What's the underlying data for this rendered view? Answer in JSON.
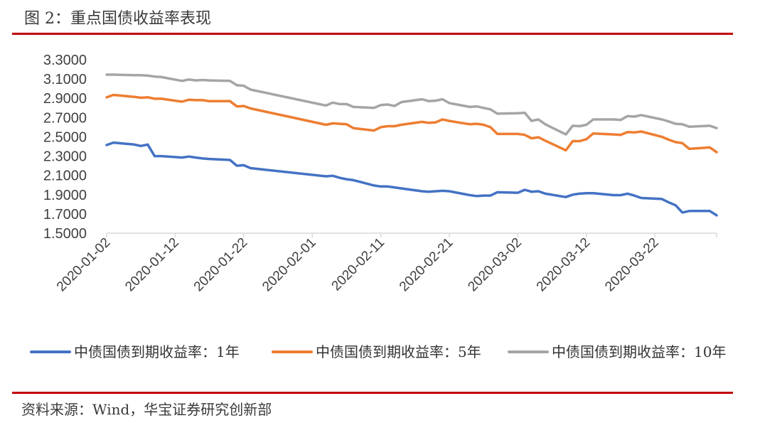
{
  "title": "图 2：重点国债收益率表现",
  "source": "资料来源：Wind，华宝证券研究创新部",
  "colors": {
    "rule": "#c00000",
    "axis": "#d9d9d9"
  },
  "chart_data": {
    "type": "line",
    "title": "",
    "xlabel": "",
    "ylabel": "",
    "ylim": [
      1.5,
      3.3
    ],
    "yticks": [
      "3.3000",
      "3.1000",
      "2.9000",
      "2.7000",
      "2.5000",
      "2.3000",
      "2.1000",
      "1.9000",
      "1.7000",
      "1.5000"
    ],
    "xlim": [
      "2020-01-02",
      "2020-03-31"
    ],
    "xticks": [
      "2020-01-02",
      "2020-01-12",
      "2020-01-22",
      "2020-02-01",
      "2020-02-11",
      "2020-02-21",
      "2020-03-02",
      "2020-03-12",
      "2020-03-22"
    ],
    "grid": false,
    "legend": "bottom",
    "series": [
      {
        "name": "中债国债到期收益率：1年",
        "color": "#4472c4",
        "points": [
          [
            "2020-01-02",
            2.415
          ],
          [
            "2020-01-03",
            2.44
          ],
          [
            "2020-01-06",
            2.42
          ],
          [
            "2020-01-07",
            2.405
          ],
          [
            "2020-01-08",
            2.42
          ],
          [
            "2020-01-09",
            2.3
          ],
          [
            "2020-01-10",
            2.3
          ],
          [
            "2020-01-13",
            2.285
          ],
          [
            "2020-01-14",
            2.295
          ],
          [
            "2020-01-15",
            2.285
          ],
          [
            "2020-01-16",
            2.275
          ],
          [
            "2020-01-17",
            2.27
          ],
          [
            "2020-01-20",
            2.26
          ],
          [
            "2020-01-21",
            2.2
          ],
          [
            "2020-01-22",
            2.205
          ],
          [
            "2020-01-23",
            2.175
          ],
          [
            "2020-02-03",
            2.09
          ],
          [
            "2020-02-04",
            2.095
          ],
          [
            "2020-02-05",
            2.075
          ],
          [
            "2020-02-06",
            2.06
          ],
          [
            "2020-02-07",
            2.05
          ],
          [
            "2020-02-10",
            1.995
          ],
          [
            "2020-02-11",
            1.985
          ],
          [
            "2020-02-12",
            1.985
          ],
          [
            "2020-02-13",
            1.975
          ],
          [
            "2020-02-14",
            1.965
          ],
          [
            "2020-02-17",
            1.935
          ],
          [
            "2020-02-18",
            1.93
          ],
          [
            "2020-02-19",
            1.935
          ],
          [
            "2020-02-20",
            1.94
          ],
          [
            "2020-02-21",
            1.935
          ],
          [
            "2020-02-24",
            1.895
          ],
          [
            "2020-02-25",
            1.885
          ],
          [
            "2020-02-26",
            1.89
          ],
          [
            "2020-02-27",
            1.89
          ],
          [
            "2020-02-28",
            1.925
          ],
          [
            "2020-03-02",
            1.92
          ],
          [
            "2020-03-03",
            1.95
          ],
          [
            "2020-03-04",
            1.93
          ],
          [
            "2020-03-05",
            1.935
          ],
          [
            "2020-03-06",
            1.91
          ],
          [
            "2020-03-09",
            1.875
          ],
          [
            "2020-03-10",
            1.9
          ],
          [
            "2020-03-11",
            1.91
          ],
          [
            "2020-03-12",
            1.915
          ],
          [
            "2020-03-13",
            1.915
          ],
          [
            "2020-03-16",
            1.895
          ],
          [
            "2020-03-17",
            1.895
          ],
          [
            "2020-03-18",
            1.91
          ],
          [
            "2020-03-19",
            1.89
          ],
          [
            "2020-03-20",
            1.865
          ],
          [
            "2020-03-23",
            1.855
          ],
          [
            "2020-03-24",
            1.82
          ],
          [
            "2020-03-25",
            1.79
          ],
          [
            "2020-03-26",
            1.715
          ],
          [
            "2020-03-27",
            1.73
          ],
          [
            "2020-03-30",
            1.73
          ],
          [
            "2020-03-31",
            1.685
          ]
        ]
      },
      {
        "name": "中债国债到期收益率：5年",
        "color": "#ed7d31",
        "points": [
          [
            "2020-01-02",
            2.91
          ],
          [
            "2020-01-03",
            2.935
          ],
          [
            "2020-01-06",
            2.915
          ],
          [
            "2020-01-07",
            2.905
          ],
          [
            "2020-01-08",
            2.91
          ],
          [
            "2020-01-09",
            2.895
          ],
          [
            "2020-01-10",
            2.895
          ],
          [
            "2020-01-13",
            2.865
          ],
          [
            "2020-01-14",
            2.885
          ],
          [
            "2020-01-15",
            2.88
          ],
          [
            "2020-01-16",
            2.88
          ],
          [
            "2020-01-17",
            2.87
          ],
          [
            "2020-01-20",
            2.87
          ],
          [
            "2020-01-21",
            2.815
          ],
          [
            "2020-01-22",
            2.82
          ],
          [
            "2020-01-23",
            2.795
          ],
          [
            "2020-02-03",
            2.625
          ],
          [
            "2020-02-04",
            2.64
          ],
          [
            "2020-02-05",
            2.635
          ],
          [
            "2020-02-06",
            2.63
          ],
          [
            "2020-02-07",
            2.59
          ],
          [
            "2020-02-10",
            2.565
          ],
          [
            "2020-02-11",
            2.6
          ],
          [
            "2020-02-12",
            2.61
          ],
          [
            "2020-02-13",
            2.61
          ],
          [
            "2020-02-14",
            2.625
          ],
          [
            "2020-02-17",
            2.655
          ],
          [
            "2020-02-18",
            2.645
          ],
          [
            "2020-02-19",
            2.65
          ],
          [
            "2020-02-20",
            2.68
          ],
          [
            "2020-02-21",
            2.665
          ],
          [
            "2020-02-24",
            2.63
          ],
          [
            "2020-02-25",
            2.635
          ],
          [
            "2020-02-26",
            2.625
          ],
          [
            "2020-02-27",
            2.6
          ],
          [
            "2020-02-28",
            2.53
          ],
          [
            "2020-03-02",
            2.53
          ],
          [
            "2020-03-03",
            2.52
          ],
          [
            "2020-03-04",
            2.485
          ],
          [
            "2020-03-05",
            2.495
          ],
          [
            "2020-03-06",
            2.46
          ],
          [
            "2020-03-09",
            2.36
          ],
          [
            "2020-03-10",
            2.455
          ],
          [
            "2020-03-11",
            2.455
          ],
          [
            "2020-03-12",
            2.475
          ],
          [
            "2020-03-13",
            2.535
          ],
          [
            "2020-03-16",
            2.525
          ],
          [
            "2020-03-17",
            2.52
          ],
          [
            "2020-03-18",
            2.55
          ],
          [
            "2020-03-19",
            2.545
          ],
          [
            "2020-03-20",
            2.555
          ],
          [
            "2020-03-23",
            2.5
          ],
          [
            "2020-03-24",
            2.47
          ],
          [
            "2020-03-25",
            2.445
          ],
          [
            "2020-03-26",
            2.435
          ],
          [
            "2020-03-27",
            2.375
          ],
          [
            "2020-03-30",
            2.39
          ],
          [
            "2020-03-31",
            2.34
          ]
        ]
      },
      {
        "name": "中债国债到期收益率：10年",
        "color": "#a5a5a5",
        "points": [
          [
            "2020-01-02",
            3.145
          ],
          [
            "2020-01-03",
            3.145
          ],
          [
            "2020-01-06",
            3.14
          ],
          [
            "2020-01-07",
            3.14
          ],
          [
            "2020-01-08",
            3.135
          ],
          [
            "2020-01-09",
            3.125
          ],
          [
            "2020-01-10",
            3.12
          ],
          [
            "2020-01-13",
            3.08
          ],
          [
            "2020-01-14",
            3.095
          ],
          [
            "2020-01-15",
            3.085
          ],
          [
            "2020-01-16",
            3.09
          ],
          [
            "2020-01-17",
            3.085
          ],
          [
            "2020-01-20",
            3.08
          ],
          [
            "2020-01-21",
            3.035
          ],
          [
            "2020-01-22",
            3.03
          ],
          [
            "2020-01-23",
            2.99
          ],
          [
            "2020-02-03",
            2.825
          ],
          [
            "2020-02-04",
            2.855
          ],
          [
            "2020-02-05",
            2.84
          ],
          [
            "2020-02-06",
            2.84
          ],
          [
            "2020-02-07",
            2.81
          ],
          [
            "2020-02-10",
            2.8
          ],
          [
            "2020-02-11",
            2.83
          ],
          [
            "2020-02-12",
            2.835
          ],
          [
            "2020-02-13",
            2.82
          ],
          [
            "2020-02-14",
            2.86
          ],
          [
            "2020-02-17",
            2.89
          ],
          [
            "2020-02-18",
            2.87
          ],
          [
            "2020-02-19",
            2.875
          ],
          [
            "2020-02-20",
            2.89
          ],
          [
            "2020-02-21",
            2.85
          ],
          [
            "2020-02-24",
            2.81
          ],
          [
            "2020-02-25",
            2.815
          ],
          [
            "2020-02-26",
            2.8
          ],
          [
            "2020-02-27",
            2.785
          ],
          [
            "2020-02-28",
            2.74
          ],
          [
            "2020-03-02",
            2.745
          ],
          [
            "2020-03-03",
            2.75
          ],
          [
            "2020-03-04",
            2.665
          ],
          [
            "2020-03-05",
            2.68
          ],
          [
            "2020-03-06",
            2.63
          ],
          [
            "2020-03-09",
            2.525
          ],
          [
            "2020-03-10",
            2.615
          ],
          [
            "2020-03-11",
            2.61
          ],
          [
            "2020-03-12",
            2.625
          ],
          [
            "2020-03-13",
            2.68
          ],
          [
            "2020-03-16",
            2.68
          ],
          [
            "2020-03-17",
            2.675
          ],
          [
            "2020-03-18",
            2.715
          ],
          [
            "2020-03-19",
            2.71
          ],
          [
            "2020-03-20",
            2.725
          ],
          [
            "2020-03-23",
            2.68
          ],
          [
            "2020-03-24",
            2.66
          ],
          [
            "2020-03-25",
            2.635
          ],
          [
            "2020-03-26",
            2.63
          ],
          [
            "2020-03-27",
            2.605
          ],
          [
            "2020-03-30",
            2.615
          ],
          [
            "2020-03-31",
            2.59
          ]
        ]
      }
    ]
  }
}
